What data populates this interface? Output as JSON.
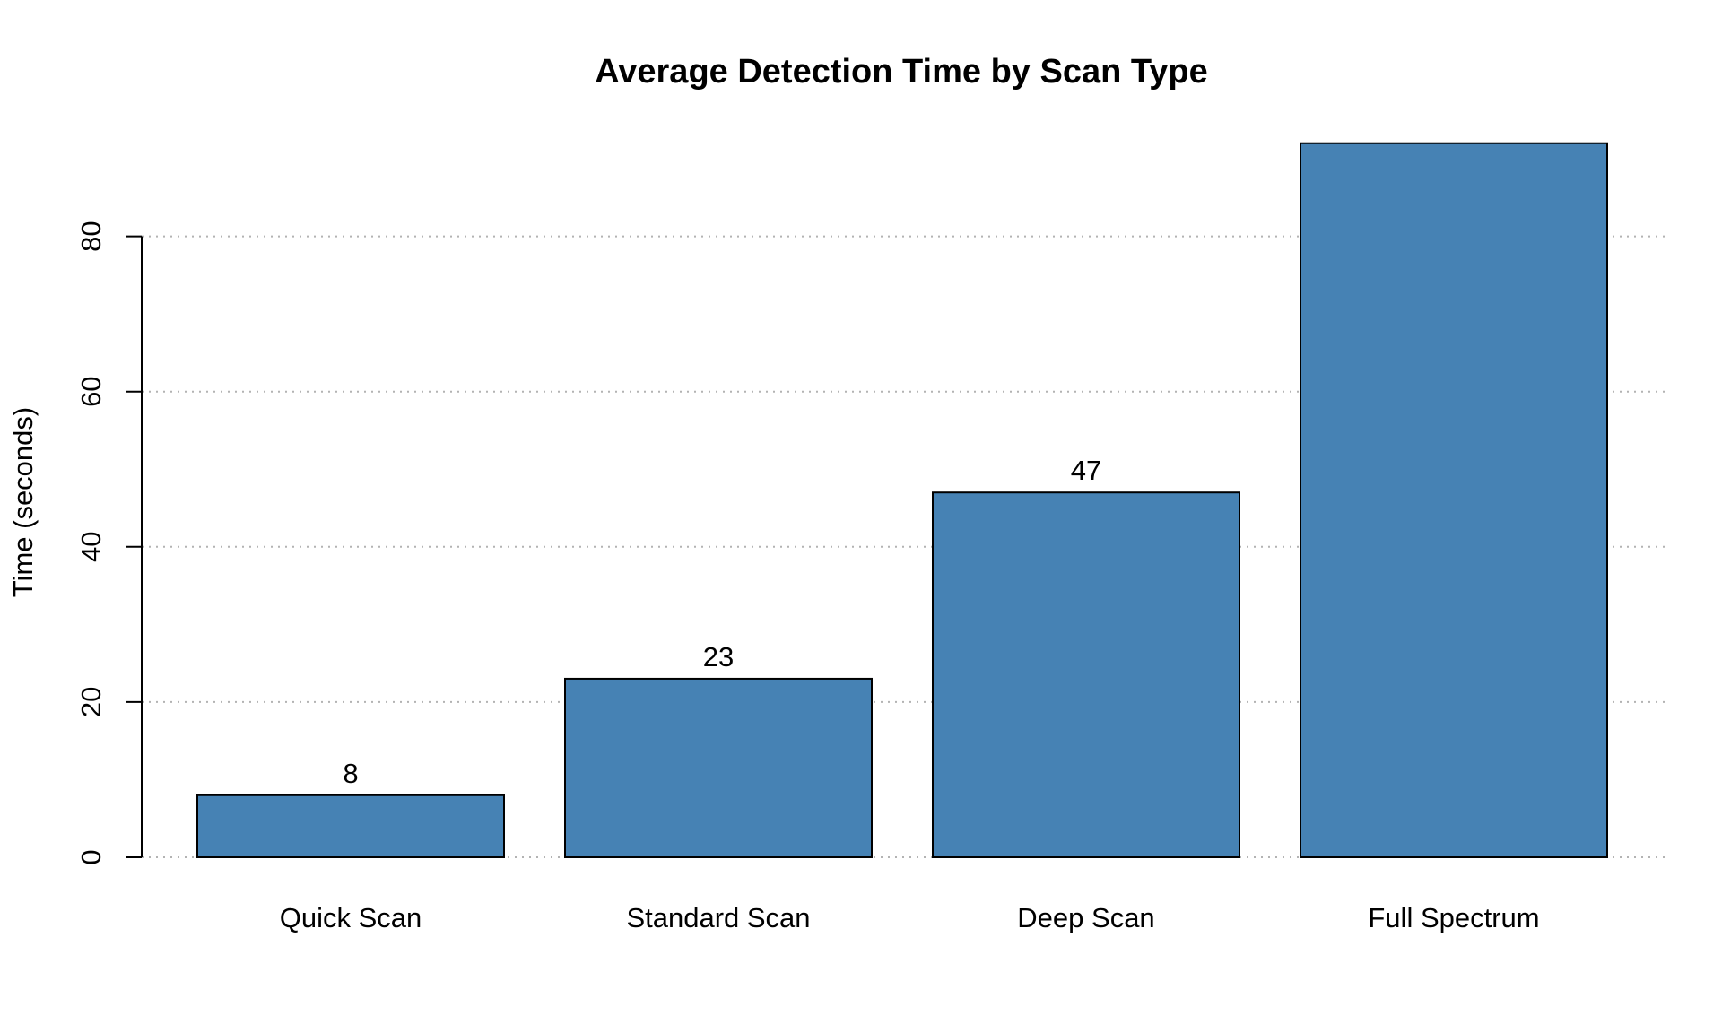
{
  "chart_data": {
    "type": "bar",
    "title": "Average Detection Time by Scan Type",
    "xlabel": "",
    "ylabel": "Time (seconds)",
    "categories": [
      "Quick Scan",
      "Standard Scan",
      "Deep Scan",
      "Full Spectrum"
    ],
    "values": [
      8,
      23,
      47,
      92
    ],
    "data_labels": [
      "8",
      "23",
      "47",
      ""
    ],
    "ylim": [
      0,
      92
    ],
    "yticks": [
      0,
      20,
      40,
      60,
      80
    ],
    "grid": true,
    "legend": "none",
    "bar_color": "#4682B4"
  }
}
